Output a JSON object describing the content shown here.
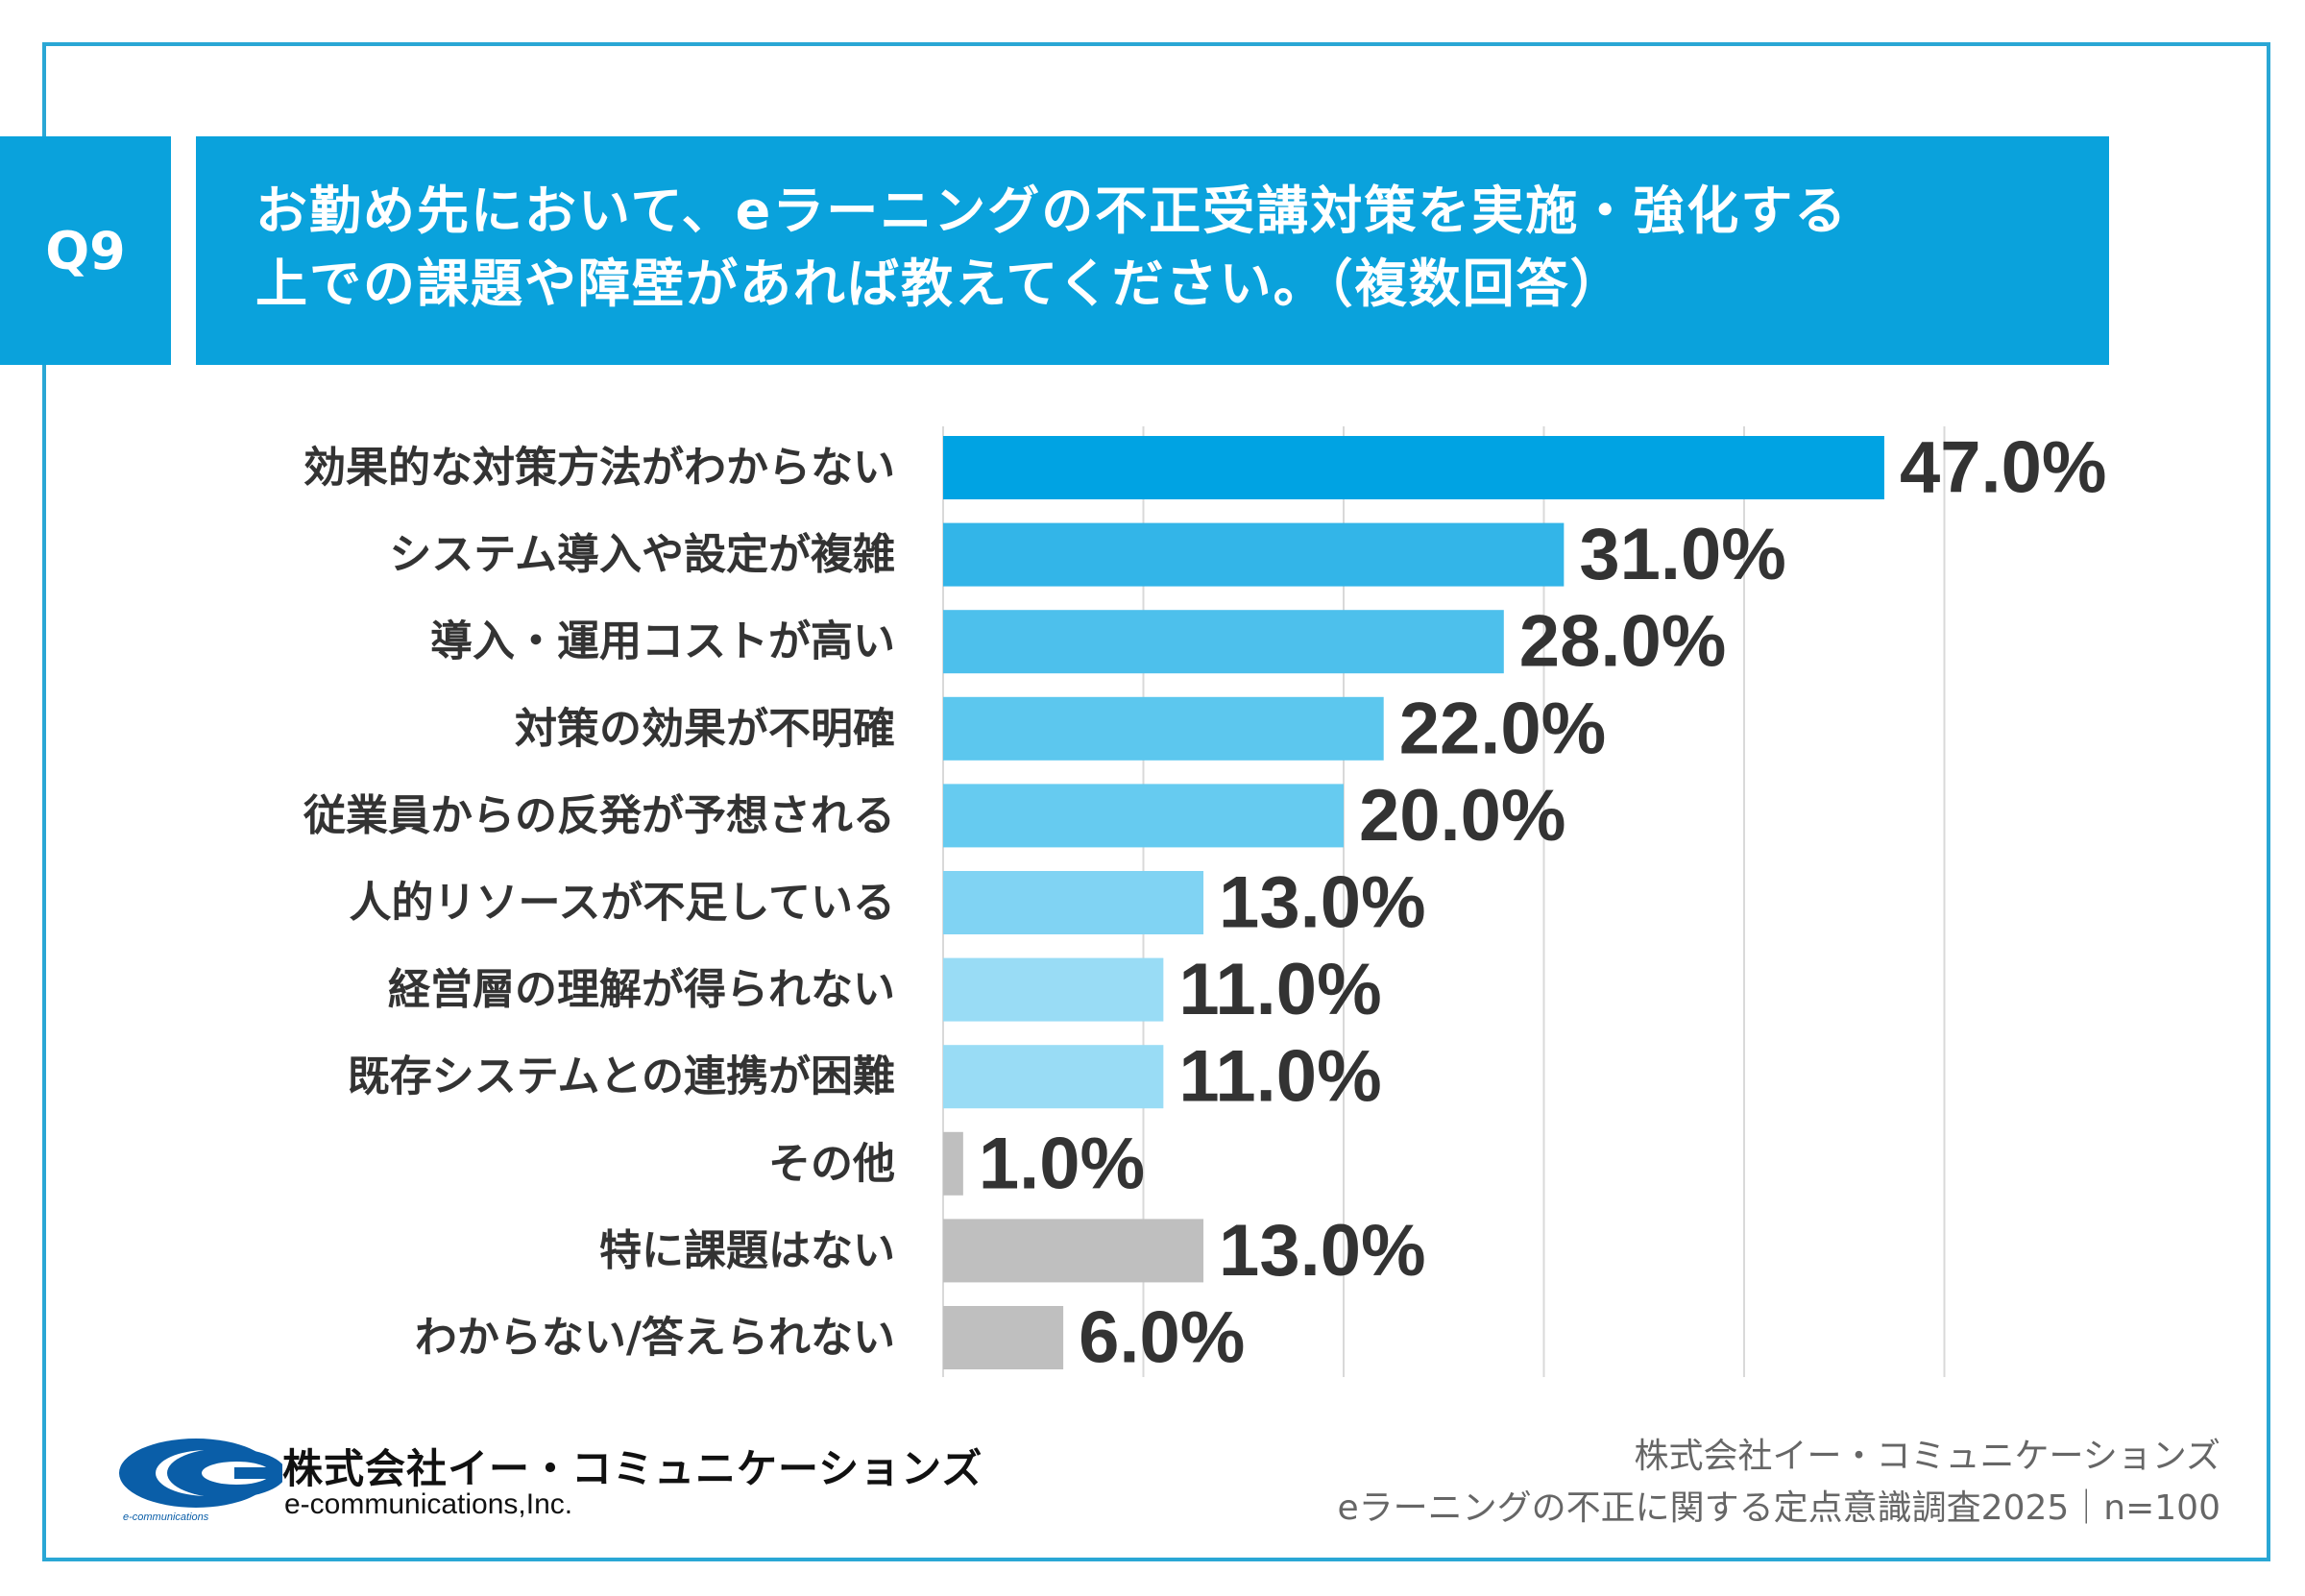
{
  "header": {
    "question_no": "Q9",
    "title_line1": "お勤め先において、eラーニングの不正受講対策を実施・強化する",
    "title_line2": "上での課題や障壁があれば教えてください。（複数回答）"
  },
  "chart_data": {
    "type": "bar",
    "orientation": "horizontal",
    "title": "お勤め先において、eラーニングの不正受講対策を実施・強化する上での課題や障壁があれば教えてください。（複数回答）",
    "categories": [
      "効果的な対策方法がわからない",
      "システム導入や設定が複雑",
      "導入・運用コストが高い",
      "対策の効果が不明確",
      "従業員からの反発が予想される",
      "人的リソースが不足している",
      "経営層の理解が得られない",
      "既存システムとの連携が困難",
      "その他",
      "特に課題はない",
      "わからない/答えられない"
    ],
    "values": [
      47.0,
      31.0,
      28.0,
      22.0,
      20.0,
      13.0,
      11.0,
      11.0,
      1.0,
      13.0,
      6.0
    ],
    "value_labels": [
      "47.0%",
      "31.0%",
      "28.0%",
      "22.0%",
      "20.0%",
      "13.0%",
      "11.0%",
      "11.0%",
      "1.0%",
      "13.0%",
      "6.0%"
    ],
    "colors": [
      "#00a3e3",
      "#33b5e8",
      "#4dc0ec",
      "#5cc7ee",
      "#66cbf0",
      "#80d3f3",
      "#99dcf5",
      "#99dcf5",
      "#bfbfbf",
      "#bfbfbf",
      "#bfbfbf"
    ],
    "xlim": [
      0,
      50
    ],
    "grid_step": 10,
    "grid": true,
    "unit": "%"
  },
  "footer": {
    "logo_company_jp": "株式会社イー・コミュニケーションズ",
    "logo_company_en": "e-communications,Inc.",
    "logo_small": "e-communications",
    "source_line1": "株式会社イー・コミュニケーションズ",
    "source_line2": "eラーニングの不正に関する定点意識調査2025｜n=100"
  },
  "theme": {
    "accent": "#0aa2dc",
    "border": "#2aa7d5",
    "text": "#333333"
  }
}
